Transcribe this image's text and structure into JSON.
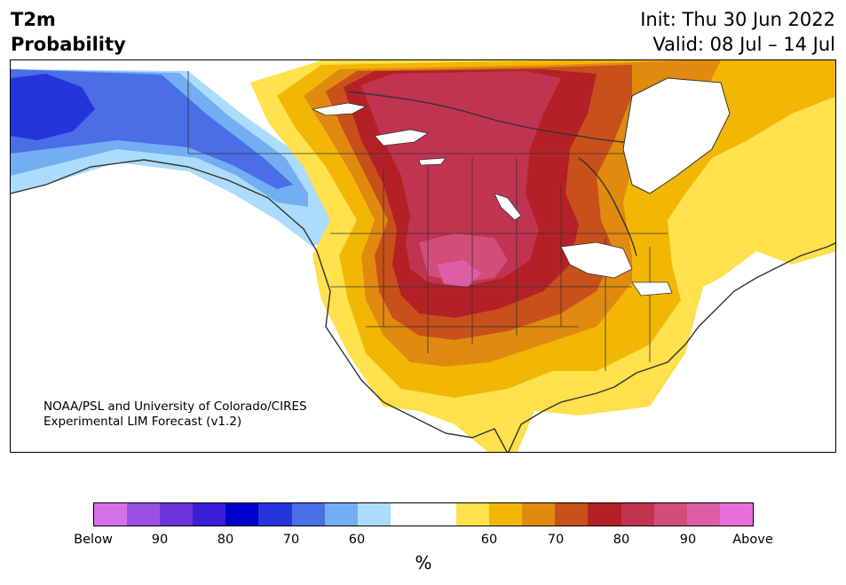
{
  "title": {
    "left_line1": "T2m",
    "left_line2": "Probability",
    "init": "Init: Thu 30 Jun 2022",
    "valid": "Valid: 08 Jul – 14 Jul"
  },
  "credit": {
    "line1": "NOAA/PSL and University of Colorado/CIRES",
    "line2": "Experimental LIM Forecast (v1.2)"
  },
  "colorbar": {
    "unit": "%",
    "colors": [
      "#d670e8",
      "#9a4fe0",
      "#6b35d8",
      "#3a1fd6",
      "#0000cc",
      "#2535dc",
      "#4a6ee6",
      "#74aef2",
      "#acdcfc",
      "#ffffff",
      "#ffffff",
      "#ffe04d",
      "#f2b705",
      "#e08a10",
      "#c8501a",
      "#b32126",
      "#c0344f",
      "#d14e7a",
      "#dc5ea8",
      "#e86fd9"
    ],
    "tick_labels": [
      "Below",
      "90",
      "80",
      "70",
      "60",
      "60",
      "70",
      "80",
      "90",
      "Above"
    ]
  },
  "map": {
    "region": "North America",
    "legend_colors": {
      "blue_dark": "#2535dc",
      "blue_mid": "#4a6ee6",
      "blue_light": "#74aef2",
      "blue_pale": "#acdcfc",
      "yellow": "#ffe04d",
      "gold": "#f2b705",
      "orange": "#e08a10",
      "burnt": "#c8501a",
      "red": "#b32126",
      "crimson": "#c0344f",
      "rose": "#d14e7a",
      "pink": "#dc5ea8"
    }
  }
}
